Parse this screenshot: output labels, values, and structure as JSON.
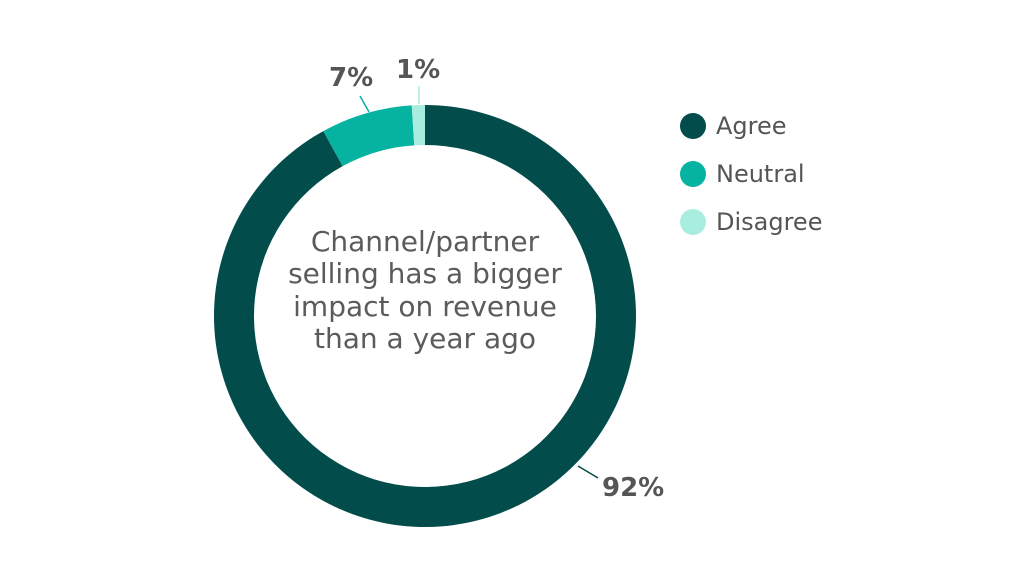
{
  "chart_data": {
    "type": "pie",
    "center_label": "Channel/partner selling has a bigger impact on revenue than a year ago",
    "slices": [
      {
        "name": "Agree",
        "value": 92,
        "label": "92%",
        "color": "#034c4c"
      },
      {
        "name": "Neutral",
        "value": 7,
        "label": "7%",
        "color": "#06b3a1"
      },
      {
        "name": "Disagree",
        "value": 1,
        "label": "1%",
        "color": "#a9ede0"
      }
    ],
    "legend_position": "right"
  },
  "colors": {
    "text": "#555555",
    "center_text": "#5b5b5b"
  }
}
